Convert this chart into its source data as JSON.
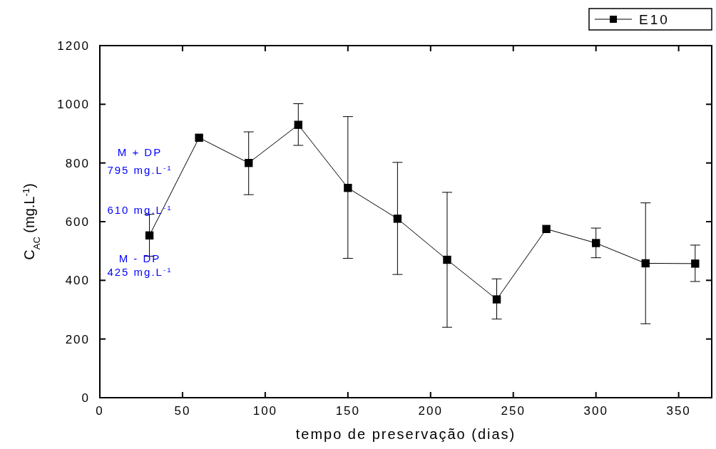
{
  "chart_data": {
    "type": "line",
    "xlabel": "tempo de preservação (dias)",
    "ylabel": "C$_{AC}$ (mg.L$^{-1}$)",
    "x": [
      30,
      60,
      90,
      120,
      150,
      180,
      210,
      240,
      270,
      300,
      330,
      360
    ],
    "series": [
      {
        "name": "E10",
        "color": "#000000",
        "values": [
          553,
          886,
          800,
          930,
          715,
          610,
          470,
          335,
          575,
          527,
          458,
          457
        ],
        "errors": [
          [
            482,
            625
          ],
          null,
          [
            692,
            906
          ],
          [
            860,
            1002
          ],
          [
            475,
            958
          ],
          [
            420,
            802
          ],
          [
            240,
            700
          ],
          [
            268,
            405
          ],
          null,
          [
            477,
            578
          ],
          [
            252,
            664
          ],
          [
            396,
            520
          ]
        ]
      }
    ],
    "xlim": [
      0,
      370
    ],
    "xticks": [
      0,
      50,
      100,
      150,
      200,
      250,
      300,
      350
    ],
    "ylim": [
      0,
      1200
    ],
    "yticks": [
      0,
      200,
      400,
      600,
      800,
      1000,
      1200
    ],
    "marker": "square",
    "line_style": "solid",
    "grid": false,
    "legend": "top right",
    "annotations": [
      "M + DP",
      "795 mg.L$^{-1}$",
      "610 mg.L$^{-1}$",
      "M - DP",
      "425 mg.L$^{-1}$"
    ]
  }
}
